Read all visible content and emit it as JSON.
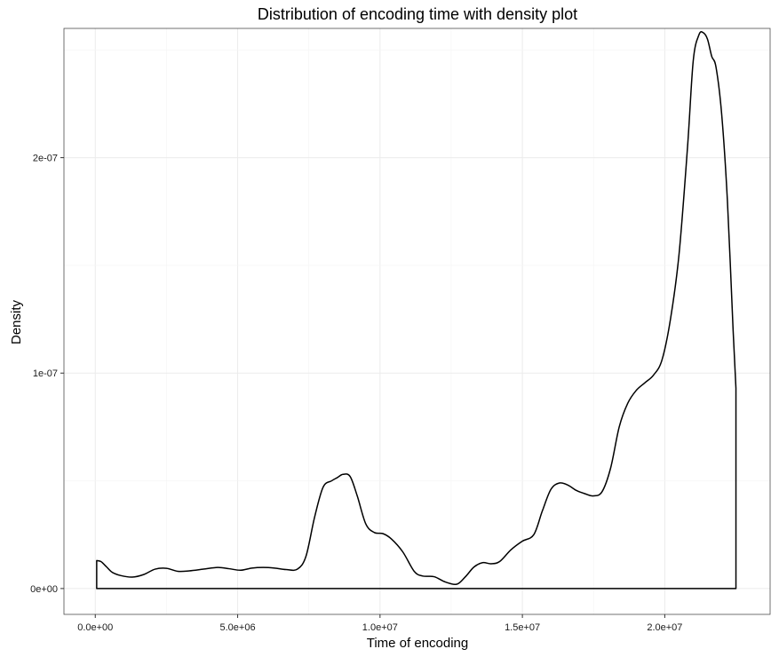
{
  "chart_data": {
    "type": "area",
    "title": "Distribution of encoding time with density plot",
    "xlabel": "Time of encoding",
    "ylabel": "Density",
    "xlim": [
      -1100000,
      23700000
    ],
    "ylim": [
      -1.2e-08,
      2.6e-07
    ],
    "x_ticks": [
      {
        "value": 0,
        "label": "0.0e+00"
      },
      {
        "value": 5000000,
        "label": "5.0e+06"
      },
      {
        "value": 10000000,
        "label": "1.0e+07"
      },
      {
        "value": 15000000,
        "label": "1.5e+07"
      },
      {
        "value": 20000000,
        "label": "2.0e+07"
      }
    ],
    "y_ticks": [
      {
        "value": 0,
        "label": "0e+00"
      },
      {
        "value": 1e-07,
        "label": "1e-07"
      },
      {
        "value": 2e-07,
        "label": "2e-07"
      }
    ],
    "grid": true,
    "fill": "none",
    "line_color": "#000000",
    "series": [
      {
        "x": [
          50000,
          200000,
          400000,
          600000,
          900000,
          1300000,
          1700000,
          2100000,
          2500000,
          2900000,
          3300000,
          3800000,
          4300000,
          4700000,
          5100000,
          5500000,
          5900000,
          6300000,
          6700000,
          7100000,
          7400000,
          7700000,
          8000000,
          8300000,
          8500000,
          8700000,
          8950000,
          9200000,
          9500000,
          9800000,
          10100000,
          10400000,
          10800000,
          11200000,
          11500000,
          11900000,
          12300000,
          12700000,
          13000000,
          13300000,
          13600000,
          13900000,
          14200000,
          14600000,
          15000000,
          15400000,
          15700000,
          16000000,
          16300000,
          16600000,
          16900000,
          17200000,
          17500000,
          17800000,
          18100000,
          18400000,
          18700000,
          19000000,
          19300000,
          19600000,
          19900000,
          20200000,
          20500000,
          20800000,
          21000000,
          21200000,
          21350000,
          21500000,
          21650000,
          21800000,
          22000000,
          22200000,
          22400000,
          22500000
        ],
        "y": [
          1.3e-08,
          1.25e-08,
          1e-08,
          7.5e-09,
          6e-09,
          5.3e-09,
          6.5e-09,
          9e-09,
          9.4e-09,
          8e-09,
          8.2e-09,
          9e-09,
          9.8e-09,
          9.2e-09,
          8.5e-09,
          9.5e-09,
          9.8e-09,
          9.5e-09,
          8.8e-09,
          9e-09,
          1.5e-08,
          3.3e-08,
          4.7e-08,
          5e-08,
          5.15e-08,
          5.3e-08,
          5.2e-08,
          4.3e-08,
          3e-08,
          2.6e-08,
          2.55e-08,
          2.3e-08,
          1.7e-08,
          8e-09,
          5.8e-09,
          5.5e-09,
          3e-09,
          2e-09,
          5.5e-09,
          1e-08,
          1.2e-08,
          1.15e-08,
          1.25e-08,
          1.8e-08,
          2.2e-08,
          2.5e-08,
          3.6e-08,
          4.6e-08,
          4.9e-08,
          4.8e-08,
          4.55e-08,
          4.4e-08,
          4.3e-08,
          4.5e-08,
          5.6e-08,
          7.5e-08,
          8.6e-08,
          9.2e-08,
          9.55e-08,
          9.9e-08,
          1.06e-07,
          1.25e-07,
          1.55e-07,
          2.05e-07,
          2.45e-07,
          2.57e-07,
          2.58e-07,
          2.55e-07,
          2.47e-07,
          2.42e-07,
          2.2e-07,
          1.8e-07,
          1.2e-07,
          9.3e-08
        ]
      }
    ]
  }
}
